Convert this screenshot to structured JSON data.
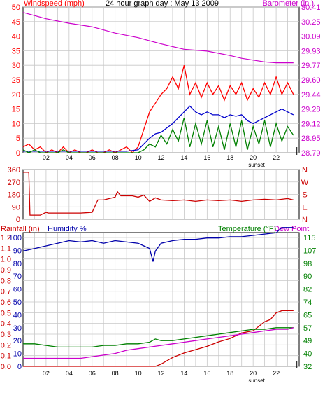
{
  "colors": {
    "wind": "#ff0000",
    "gust": "#ff0000",
    "avg": "#0000cc",
    "speed": "#008000",
    "baro": "#cc00cc",
    "direction": "#cc0000",
    "rain": "#cc0000",
    "humidity": "#0000aa",
    "temp": "#008000",
    "dew": "#cc00cc",
    "frame": "#000000",
    "grid": "#c8c8c8",
    "bg": "#ffffff"
  },
  "chart_data": [
    {
      "type": "line",
      "title": "24 hour graph day : May 13 2009",
      "left_axis_label": "Windspeed (mph)",
      "right_axis_label": "Barometer (in.)",
      "left_ticks": [
        "50",
        "45",
        "40",
        "35",
        "30",
        "25",
        "20",
        "15",
        "10",
        "5",
        "0"
      ],
      "right_ticks": [
        "30.41",
        "30.25",
        "30.09",
        "29.93",
        "29.77",
        "29.60",
        "29.44",
        "29.28",
        "29.12",
        "28.95",
        "28.79"
      ],
      "x_ticks": [
        "02",
        "04",
        "06",
        "08",
        "10",
        "12",
        "14",
        "16",
        "18",
        "20",
        "22"
      ],
      "sunset_label": "sunset",
      "ylim": [
        0,
        50
      ],
      "y2lim": [
        28.79,
        30.41
      ],
      "xlim": [
        0,
        24
      ],
      "grid": true,
      "series": [
        {
          "key": "gust",
          "axis": "left",
          "x": [
            0,
            0.5,
            1,
            1.5,
            2,
            2.5,
            3,
            3.5,
            4,
            4.5,
            5,
            5.5,
            6,
            6.5,
            7,
            7.5,
            8,
            8.5,
            9,
            9.5,
            10,
            10.5,
            11,
            11.5,
            12,
            12.5,
            13,
            13.5,
            14,
            14.5,
            15,
            15.5,
            16,
            16.5,
            17,
            17.5,
            18,
            18.5,
            19,
            19.5,
            20,
            20.5,
            21,
            21.5,
            22,
            22.5,
            23,
            23.5
          ],
          "y": [
            2,
            3,
            1,
            2,
            0,
            1,
            0,
            2,
            0,
            1,
            0,
            0,
            1,
            0,
            0,
            1,
            0,
            1,
            2,
            0,
            2,
            8,
            14,
            17,
            20,
            22,
            26,
            22,
            30,
            20,
            24,
            19,
            24,
            20,
            23,
            18,
            23,
            20,
            24,
            18,
            22,
            19,
            24,
            20,
            26,
            20,
            24,
            20
          ]
        },
        {
          "key": "avg",
          "axis": "left",
          "x": [
            0,
            1,
            2,
            3,
            4,
            5,
            6,
            7,
            8,
            9,
            10,
            10.5,
            11,
            11.5,
            12,
            12.5,
            13,
            13.5,
            14,
            14.5,
            15,
            15.5,
            16,
            16.5,
            17,
            17.5,
            18,
            18.5,
            19,
            19.5,
            20,
            20.5,
            21,
            21.5,
            22,
            22.5,
            23,
            23.5
          ],
          "y": [
            0.5,
            0.5,
            0.5,
            0.5,
            0.5,
            0.5,
            0.5,
            0.5,
            0.5,
            0.5,
            1,
            3,
            5,
            6.5,
            7,
            8.5,
            10,
            12,
            14,
            16,
            14,
            13,
            14,
            13,
            13,
            12,
            13,
            12.5,
            13,
            11,
            10,
            11,
            12,
            13,
            14,
            15,
            14,
            13
          ]
        },
        {
          "key": "speed",
          "axis": "left",
          "x": [
            0,
            0.5,
            1,
            1.5,
            2,
            2.5,
            3,
            3.5,
            4,
            4.5,
            5,
            5.5,
            6,
            6.5,
            7,
            7.5,
            8,
            8.5,
            9,
            9.5,
            10,
            10.5,
            11,
            11.5,
            12,
            12.5,
            13,
            13.5,
            14,
            14.5,
            15,
            15.5,
            16,
            16.5,
            17,
            17.5,
            18,
            18.5,
            19,
            19.5,
            20,
            20.5,
            21,
            21.5,
            22,
            22.5,
            23,
            23.5
          ],
          "y": [
            1,
            0,
            1,
            0,
            0,
            0,
            0,
            1,
            0,
            0,
            0,
            0,
            0,
            0,
            0,
            0,
            0,
            0,
            0,
            0,
            0,
            1,
            3,
            2,
            6,
            3,
            8,
            4,
            12,
            2,
            10,
            3,
            11,
            2,
            9,
            1,
            10,
            2,
            11,
            1,
            9,
            3,
            11,
            2,
            10,
            4,
            9,
            6
          ]
        },
        {
          "key": "baro",
          "axis": "right",
          "x": [
            0,
            2,
            4,
            6,
            8,
            10,
            12,
            14,
            16,
            18,
            19,
            20,
            21,
            22,
            23,
            23.5
          ],
          "y": [
            30.35,
            30.28,
            30.23,
            30.19,
            30.12,
            30.07,
            30.0,
            29.94,
            29.92,
            29.87,
            29.84,
            29.82,
            29.8,
            29.79,
            29.79,
            29.79
          ]
        }
      ]
    },
    {
      "type": "line",
      "left_ticks": [
        "360",
        "270",
        "180",
        "90",
        "0"
      ],
      "right_ticks": [
        "N",
        "W",
        "S",
        "E",
        "N"
      ],
      "ylim": [
        0,
        360
      ],
      "xlim": [
        0,
        24
      ],
      "grid": true,
      "series": [
        {
          "key": "direction",
          "x": [
            0,
            0.5,
            0.6,
            1.5,
            2,
            2.2,
            4,
            5,
            6,
            6.5,
            7,
            7.5,
            8,
            8.2,
            8.5,
            9,
            9.5,
            10,
            10.5,
            11,
            11.5,
            12,
            13,
            14,
            15,
            16,
            17,
            18,
            19,
            20,
            21,
            22,
            23,
            23.5
          ],
          "y": [
            340,
            340,
            30,
            30,
            50,
            45,
            45,
            45,
            50,
            140,
            140,
            150,
            160,
            200,
            170,
            170,
            170,
            160,
            175,
            130,
            155,
            140,
            135,
            140,
            130,
            140,
            135,
            140,
            130,
            140,
            145,
            140,
            150,
            140
          ]
        }
      ]
    },
    {
      "type": "line",
      "left_axis_label": "Rainfall (in)",
      "humidity_label": "Humidity %",
      "right_axis_label_1": "Temperature (°F)",
      "right_axis_label_2": "Dew Point",
      "left_ticks_rain": [
        "1.2",
        "1.1",
        "1.0",
        "0.9",
        "0.8",
        "0.7",
        "0.6",
        "0.5",
        "0.4",
        "0.3",
        "0.2",
        "0.1",
        "0.0"
      ],
      "left_ticks_hum": [
        "100",
        "90",
        "80",
        "70",
        "60",
        "50",
        "40",
        "30",
        "20",
        "10",
        "0"
      ],
      "right_ticks": [
        "115",
        "107",
        "98",
        "90",
        "82",
        "74",
        "65",
        "57",
        "49",
        "40",
        "32"
      ],
      "x_ticks": [
        "02",
        "04",
        "06",
        "08",
        "10",
        "12",
        "14",
        "16",
        "18",
        "20",
        "22"
      ],
      "sunset_label": "sunset",
      "ylim_humidity": [
        0,
        100
      ],
      "ylim_temp": [
        32,
        115
      ],
      "ylim_rain": [
        0,
        1.2
      ],
      "xlim": [
        0,
        24
      ],
      "grid": true,
      "series": [
        {
          "key": "humidity",
          "axis": "hum",
          "x": [
            0,
            1,
            2,
            3,
            4,
            5,
            6,
            7,
            8,
            9,
            10,
            10.5,
            11,
            11.3,
            11.5,
            12,
            13,
            14,
            15,
            16,
            17,
            18,
            19,
            20,
            21,
            22,
            22.5,
            23,
            23.5
          ],
          "y": [
            88,
            90,
            92,
            94,
            96,
            95,
            96,
            94,
            96,
            95,
            94,
            92,
            90,
            80,
            88,
            94,
            96,
            97,
            97,
            98,
            98,
            99,
            99,
            100,
            101,
            102,
            106,
            106,
            106
          ]
        },
        {
          "key": "rain",
          "axis": "rain",
          "x": [
            0,
            11.5,
            12,
            12.5,
            13,
            14,
            15,
            16,
            17,
            18,
            19,
            20,
            20.5,
            21,
            21.5,
            22,
            22.5,
            23,
            23.5
          ],
          "y": [
            0,
            0,
            0.02,
            0.05,
            0.08,
            0.12,
            0.15,
            0.18,
            0.22,
            0.25,
            0.3,
            0.32,
            0.36,
            0.4,
            0.42,
            0.48,
            0.5,
            0.5,
            0.5
          ]
        },
        {
          "key": "temp",
          "axis": "temp",
          "x": [
            0,
            1,
            2,
            3,
            4,
            5,
            6,
            7,
            8,
            9,
            10,
            11,
            11.5,
            12,
            13,
            14,
            15,
            16,
            17,
            18,
            19,
            20,
            21,
            22,
            23,
            23.5
          ],
          "y": [
            46,
            46,
            45,
            44,
            44,
            44,
            44,
            45,
            45,
            46,
            46,
            47,
            49,
            48,
            48,
            49,
            50,
            51,
            52,
            53,
            54,
            55,
            55,
            56,
            56,
            56
          ]
        },
        {
          "key": "dew",
          "axis": "temp",
          "x": [
            0,
            1,
            2,
            3,
            4,
            5,
            6,
            7,
            8,
            9,
            10,
            11,
            12,
            13,
            14,
            15,
            16,
            17,
            18,
            19,
            20,
            21,
            22,
            23,
            23.5
          ],
          "y": [
            37,
            37,
            37,
            37,
            37,
            37,
            38,
            39,
            40,
            42,
            43,
            44,
            45,
            46,
            47,
            48,
            49,
            50,
            51,
            52,
            53,
            54,
            55,
            55,
            56
          ]
        }
      ]
    }
  ]
}
